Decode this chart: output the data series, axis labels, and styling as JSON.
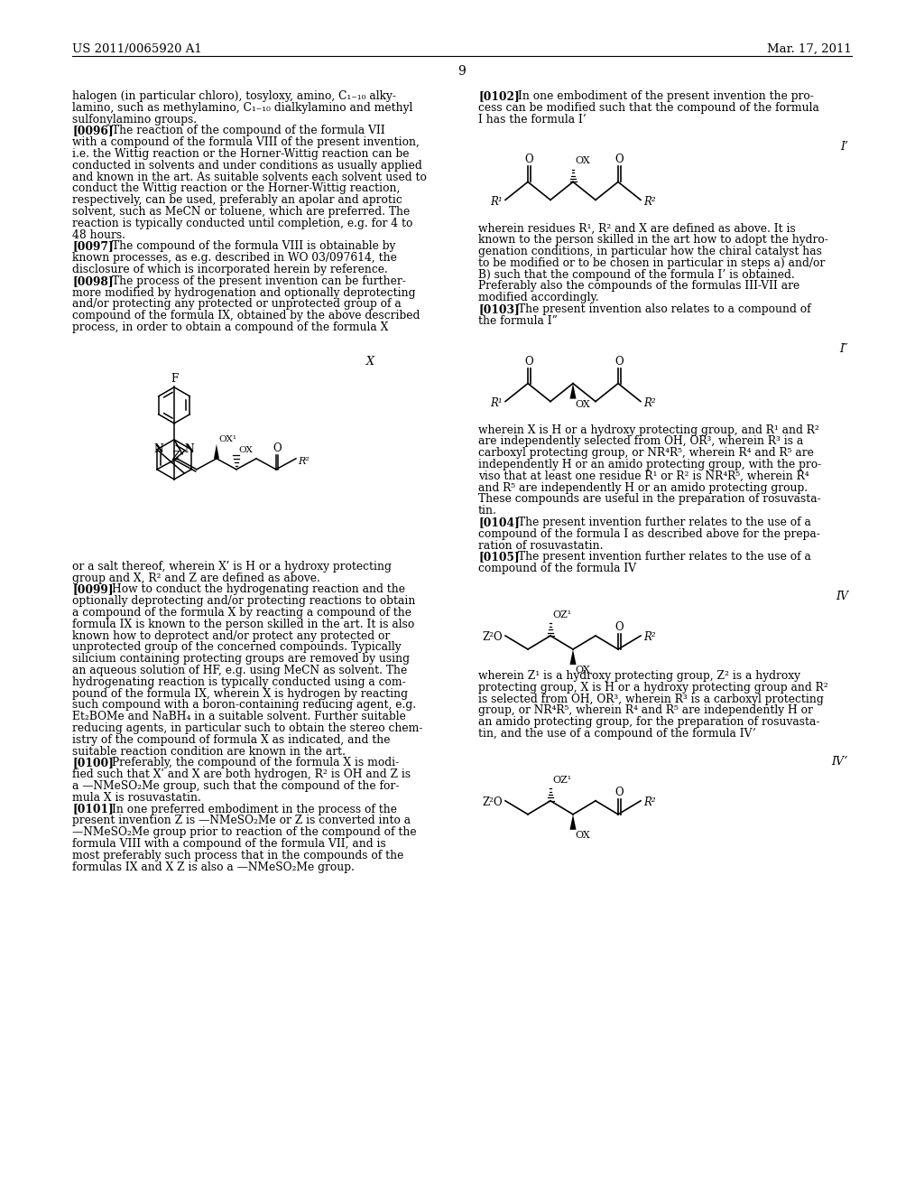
{
  "bg_color": "#ffffff",
  "header_left": "US 2011/0065920 A1",
  "header_right": "Mar. 17, 2011",
  "page_number": "9"
}
